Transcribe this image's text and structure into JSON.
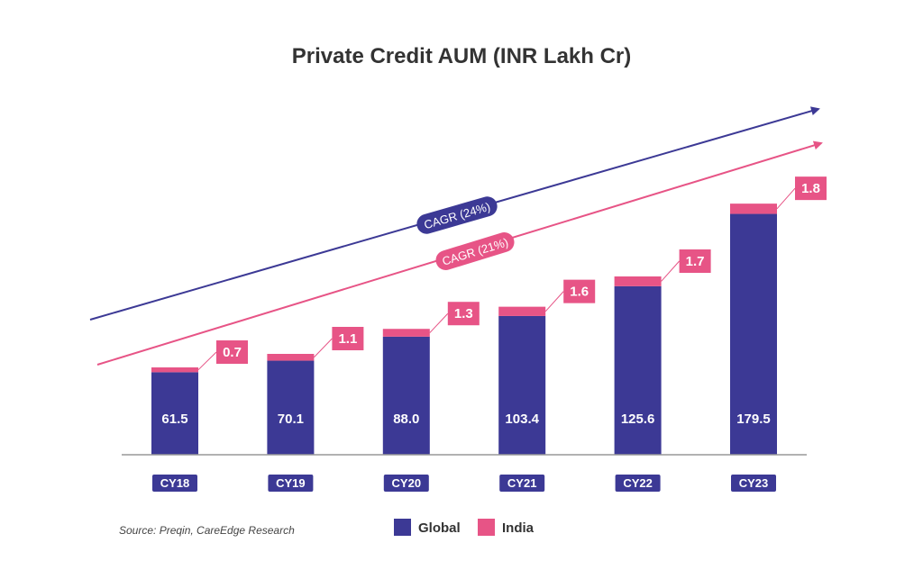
{
  "chart_data": {
    "type": "bar",
    "stacked": true,
    "title": "Private Credit AUM (INR Lakh Cr)",
    "categories": [
      "CY18",
      "CY19",
      "CY20",
      "CY21",
      "CY22",
      "CY23"
    ],
    "series": [
      {
        "name": "Global",
        "values": [
          61.5,
          70.1,
          88.0,
          103.4,
          125.6,
          179.5
        ],
        "labels": [
          "61.5",
          "70.1",
          "88.0",
          "103.4",
          "125.6",
          "179.5"
        ]
      },
      {
        "name": "India",
        "values": [
          0.7,
          1.1,
          1.3,
          1.6,
          1.7,
          1.8
        ],
        "labels": [
          "0.7",
          "1.1",
          "1.3",
          "1.6",
          "1.7",
          "1.8"
        ]
      }
    ],
    "annotations": [
      {
        "label": "CAGR (24%)",
        "series": "Global"
      },
      {
        "label": "CAGR (21%)",
        "series": "India"
      }
    ],
    "legend": {
      "position": "bottom-center",
      "entries": [
        "Global",
        "India"
      ]
    },
    "source": "Source: Preqin, CareEdge Research",
    "colors": {
      "Global": "#3c3995",
      "India": "#e75486",
      "axis": "#999999",
      "title": "#333333"
    }
  }
}
